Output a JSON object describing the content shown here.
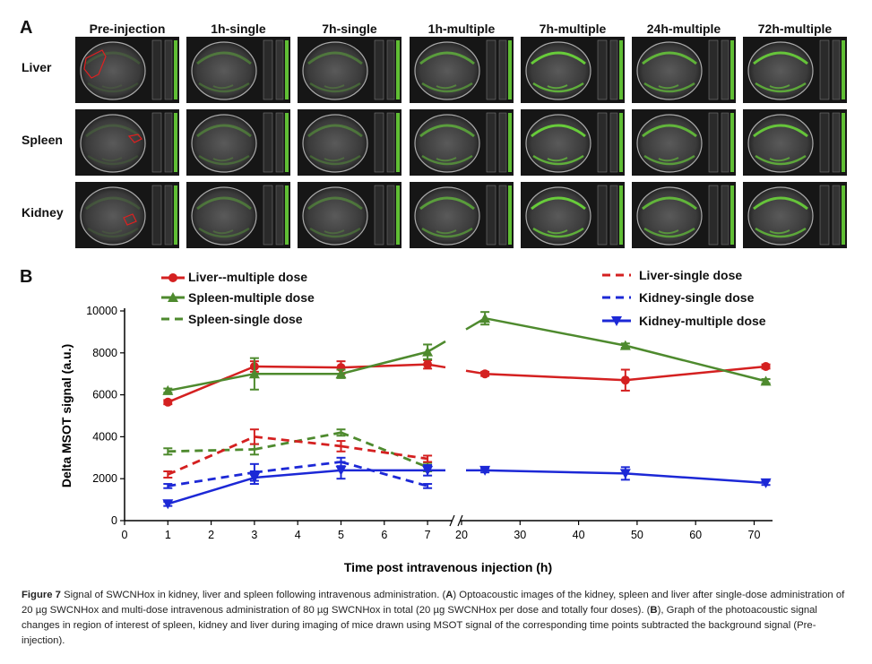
{
  "panel_a": {
    "letter": "A",
    "columns": [
      "Pre-injection",
      "1h-single",
      "7h-single",
      "1h-multiple",
      "7h-multiple",
      "24h-multiple",
      "72h-multiple"
    ],
    "rows": [
      "Liver",
      "Spleen",
      "Kidney"
    ]
  },
  "panel_b": {
    "letter": "B"
  },
  "legend": {
    "liver_multiple": "Liver--multiple dose",
    "spleen_multiple": "Spleen-multiple dose",
    "spleen_single": "Spleen-single dose",
    "liver_single": "Liver-single dose",
    "kidney_single": "Kidney-single dose",
    "kidney_multiple": "Kidney-multiple dose"
  },
  "colors": {
    "red": "#d42020",
    "green": "#4e8a2e",
    "blue": "#1c28d6",
    "fluor": "#6ddc3a"
  },
  "chart_data": {
    "type": "line",
    "xlabel": "Time post  intravenous injection (h)",
    "ylabel": "Delta MSOT signal  (a.u.)",
    "ylim": [
      0,
      10000
    ],
    "yticks": [
      0,
      2000,
      4000,
      6000,
      8000,
      10000
    ],
    "x_break": {
      "left_ticks": [
        0,
        1,
        2,
        3,
        4,
        5,
        6,
        7
      ],
      "right_ticks": [
        20,
        30,
        40,
        50,
        60,
        70
      ]
    },
    "series": [
      {
        "name": "Liver--multiple dose",
        "x": [
          1,
          3,
          5,
          7,
          24,
          48,
          72
        ],
        "y": [
          5650,
          7350,
          7300,
          7450,
          7000,
          6700,
          7350
        ],
        "err": [
          100,
          250,
          300,
          200,
          100,
          500,
          100
        ]
      },
      {
        "name": "Spleen-multiple dose",
        "x": [
          1,
          3,
          5,
          7,
          24,
          48,
          72
        ],
        "y": [
          6200,
          7000,
          7000,
          8050,
          9650,
          8350,
          6650
        ],
        "err": [
          100,
          750,
          200,
          350,
          300,
          100,
          100
        ]
      },
      {
        "name": "Spleen-single dose",
        "x": [
          1,
          3,
          5,
          7
        ],
        "y": [
          3300,
          3400,
          4200,
          2550
        ],
        "err": [
          150,
          250,
          150,
          200
        ]
      },
      {
        "name": "Liver-single dose",
        "x": [
          1,
          3,
          5,
          7
        ],
        "y": [
          2200,
          4000,
          3550,
          2950
        ],
        "err": [
          150,
          350,
          250,
          150
        ]
      },
      {
        "name": "Kidney-single dose",
        "x": [
          1,
          3,
          5,
          7
        ],
        "y": [
          1650,
          2300,
          2800,
          1650
        ],
        "err": [
          100,
          400,
          200,
          100
        ]
      },
      {
        "name": "Kidney-multiple dose",
        "x": [
          1,
          3,
          5,
          7,
          24,
          48,
          72
        ],
        "y": [
          800,
          2050,
          2400,
          2400,
          2400,
          2250,
          1800
        ],
        "err": [
          100,
          300,
          400,
          250,
          100,
          300,
          100
        ]
      }
    ]
  },
  "caption": {
    "label": "Figure 7",
    "text": " Signal of SWCNHox in kidney, liver and spleen following intravenous administration. (",
    "a": "A",
    "text2": ") Optoacoustic images of the kidney, spleen and liver after single-dose administration of 20 µg SWCNHox and multi-dose intravenous administration of 80 µg SWCNHox in total (20 µg SWCNHox per dose and totally four doses). (",
    "b": "B",
    "text3": "), Graph of the photoacoustic signal changes in region of interest of spleen, kidney and liver during imaging of mice drawn using MSOT signal of the corresponding time points subtracted the background signal (Pre-injection)."
  }
}
